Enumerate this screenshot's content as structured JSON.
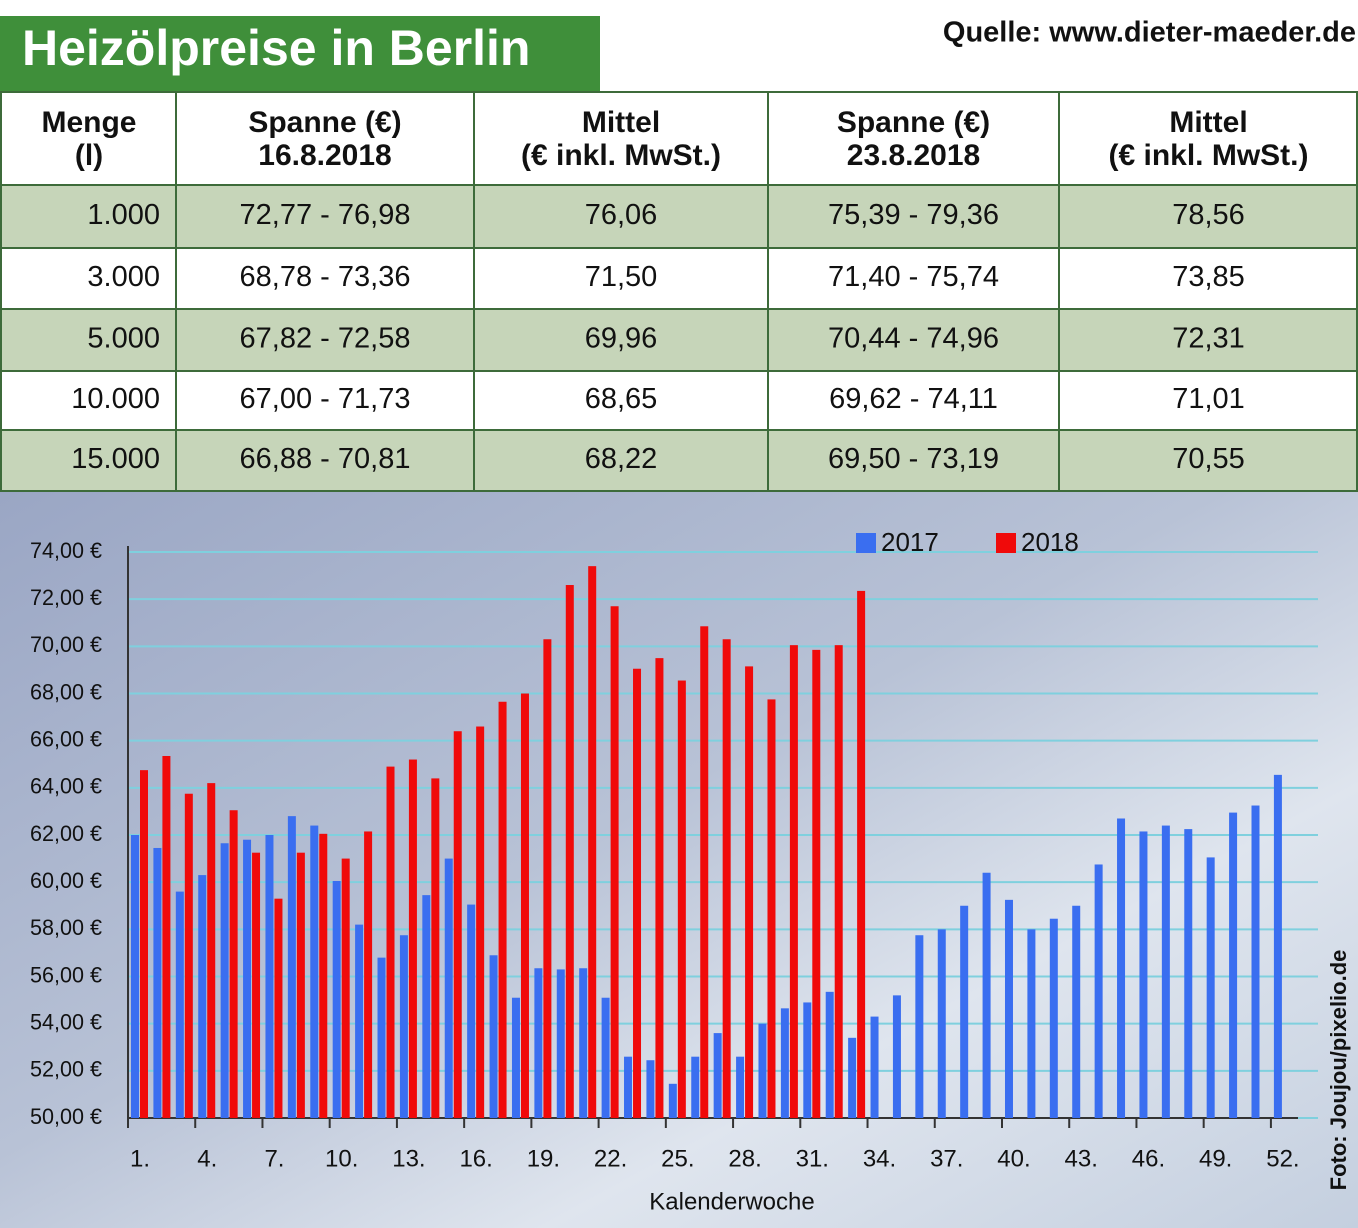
{
  "header": {
    "title": "Heizölpreise in Berlin",
    "source": "Quelle: www.dieter-maeder.de"
  },
  "table": {
    "columns": [
      [
        "Menge",
        "(l)"
      ],
      [
        "Spanne (€)",
        "16.8.2018"
      ],
      [
        "Mittel",
        "(€ inkl. MwSt.)"
      ],
      [
        "Spanne (€)",
        "23.8.2018"
      ],
      [
        "Mittel",
        "(€ inkl. MwSt.)"
      ]
    ],
    "rows": [
      [
        "1.000",
        "72,77 - 76,98",
        "76,06",
        "75,39 - 79,36",
        "78,56"
      ],
      [
        "3.000",
        "68,78 - 73,36",
        "71,50",
        "71,40 - 75,74",
        "73,85"
      ],
      [
        "5.000",
        "67,82 - 72,58",
        "69,96",
        "70,44 - 74,96",
        "72,31"
      ],
      [
        "10.000",
        "67,00 - 71,73",
        "68,65",
        "69,62 - 74,11",
        "71,01"
      ],
      [
        "15.000",
        "66,88 - 70,81",
        "68,22",
        "69,50 - 73,19",
        "70,55"
      ]
    ]
  },
  "chart_data": {
    "type": "bar",
    "xlabel": "Kalenderwoche",
    "categories": [
      "1.",
      null,
      null,
      "4.",
      null,
      null,
      "7.",
      null,
      null,
      "10.",
      null,
      null,
      "13.",
      null,
      null,
      "16.",
      null,
      null,
      "19.",
      null,
      null,
      "22.",
      null,
      null,
      "25.",
      null,
      null,
      "28.",
      null,
      null,
      "31.",
      null,
      null,
      "34.",
      null,
      null,
      "37.",
      null,
      null,
      "40.",
      null,
      null,
      "43.",
      null,
      null,
      "46.",
      null,
      null,
      "49.",
      null,
      null,
      "52."
    ],
    "series": [
      {
        "name": "2017",
        "color": "#3a6ef0",
        "values": [
          62.0,
          61.45,
          59.6,
          60.3,
          61.65,
          61.8,
          62.0,
          62.8,
          62.4,
          60.05,
          58.2,
          56.8,
          57.75,
          59.45,
          61.0,
          59.05,
          56.9,
          55.1,
          56.35,
          56.3,
          56.35,
          55.1,
          52.6,
          52.45,
          51.45,
          52.6,
          53.6,
          52.6,
          54.0,
          54.65,
          54.9,
          55.35,
          53.4,
          54.3,
          55.2,
          57.75,
          58.0,
          59.0,
          60.4,
          59.25,
          58.0,
          58.45,
          59.0,
          60.75,
          62.7,
          62.15,
          62.4,
          62.25,
          61.05,
          62.95,
          63.25,
          64.55
        ]
      },
      {
        "name": "2018",
        "color": "#f00a0a",
        "values": [
          64.75,
          65.35,
          63.75,
          64.2,
          63.05,
          61.25,
          59.3,
          61.25,
          62.05,
          61.0,
          62.15,
          64.9,
          65.2,
          64.4,
          66.4,
          66.6,
          67.65,
          68.0,
          70.3,
          72.6,
          73.4,
          71.7,
          69.05,
          69.5,
          68.55,
          70.85,
          70.3,
          69.15,
          67.75,
          70.05,
          69.85,
          70.05,
          72.35,
          null,
          null,
          null,
          null,
          null,
          null,
          null,
          null,
          null,
          null,
          null,
          null,
          null,
          null,
          null,
          null,
          null,
          null,
          null
        ]
      }
    ],
    "ylim": [
      50,
      74
    ],
    "yticks": [
      {
        "value": 50,
        "label": "50,00 €"
      },
      {
        "value": 52,
        "label": "52,00 €"
      },
      {
        "value": 54,
        "label": "54,00 €"
      },
      {
        "value": 56,
        "label": "56,00 €"
      },
      {
        "value": 58,
        "label": "58,00 €"
      },
      {
        "value": 60,
        "label": "60,00 €"
      },
      {
        "value": 62,
        "label": "62,00 €"
      },
      {
        "value": 64,
        "label": "64,00 €"
      },
      {
        "value": 66,
        "label": "66,00 €"
      },
      {
        "value": 68,
        "label": "68,00 €"
      },
      {
        "value": 70,
        "label": "70,00 €"
      },
      {
        "value": 72,
        "label": "72,00 €"
      },
      {
        "value": 74,
        "label": "74,00 €"
      }
    ],
    "grid": true,
    "legend": "top"
  },
  "credit": "Foto: Joujou/pixelio.de"
}
